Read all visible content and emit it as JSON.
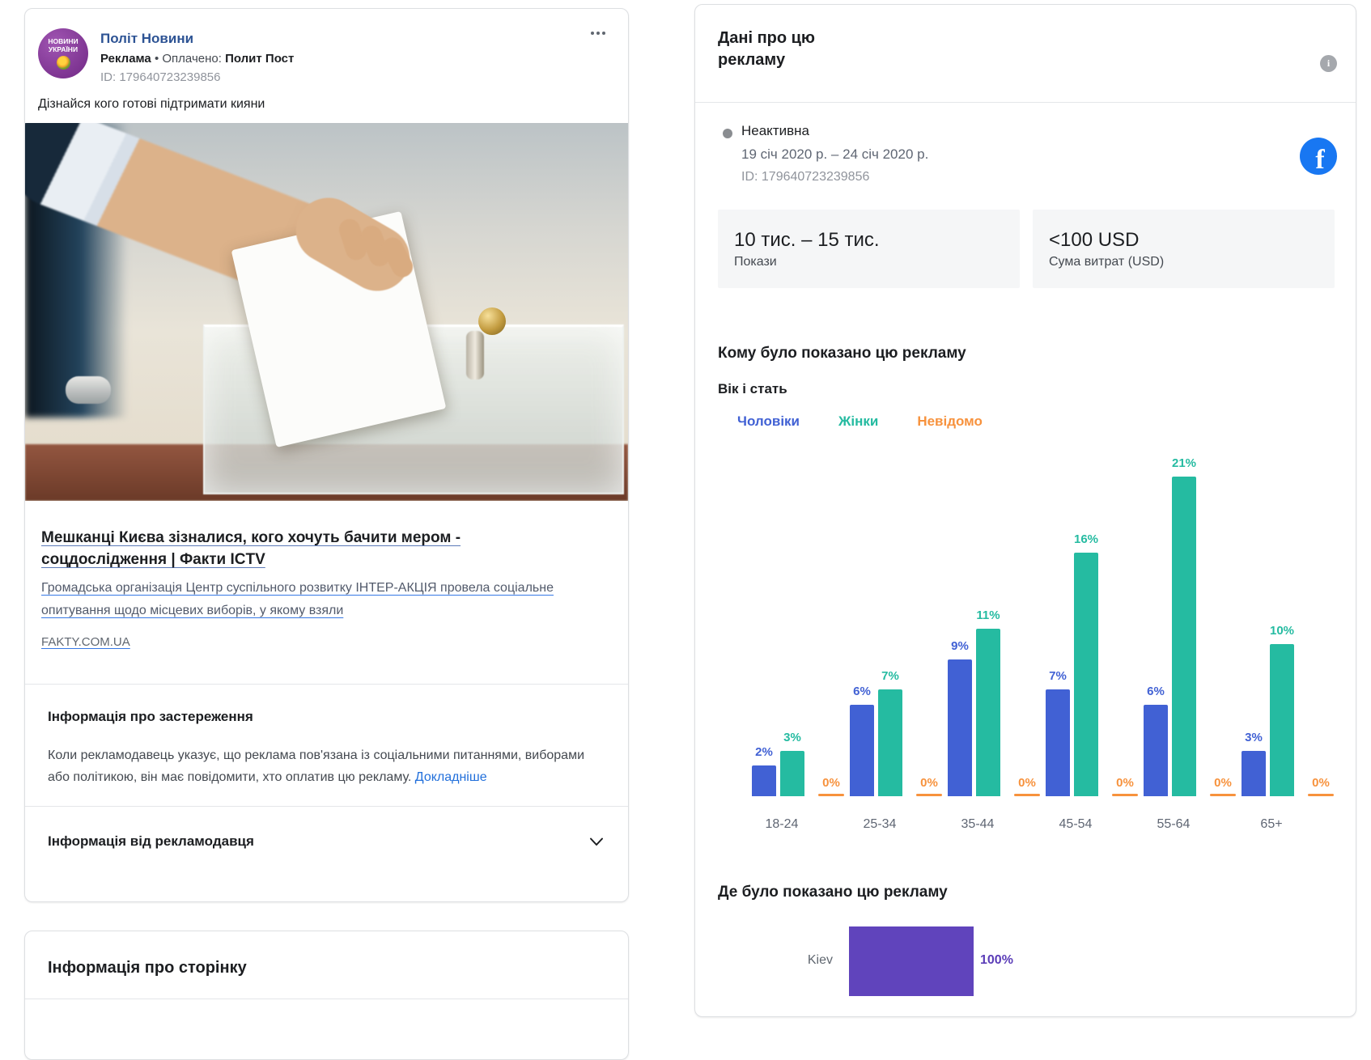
{
  "colors": {
    "men_blue": "#4161d4",
    "women_teal": "#25bba1",
    "unknown_orange": "#f7923d",
    "location_purple": "#6044bc",
    "link_blue": "#216fdb",
    "page_link_blue": "#2d5394",
    "facebook_blue": "#1877f2"
  },
  "left_card": {
    "avatar": {
      "line1": "НОВИНИ",
      "line2": "УКРАЇНИ"
    },
    "page_name": "Політ Новини",
    "meta": {
      "ad_label": "Реклама",
      "separator": "•",
      "paid_by_label": "Оплачено:",
      "paid_by": "Полит Пост"
    },
    "ad_id": "ID: 179640723239856",
    "post_text": "Дізнайся кого готові підтримати кияни",
    "link_preview": {
      "title": "Мешканці Києва зізналися, кого хочуть бачити мером - соцдослідження | Факти ICTV",
      "description": "Громадська організація Центр суспільного розвитку ІНТЕР-АКЦІЯ провела соціальне опитування щодо місцевих виборів, у якому взяли",
      "domain": "FAKTY.COM.UA"
    },
    "disclaimer": {
      "heading": "Інформація про застереження",
      "body": "Коли рекламодавець указує, що реклама пов'язана із соціальними питаннями, виборами або політикою, він має повідомити, хто оплатив цю рекламу.",
      "link": "Докладніше"
    },
    "advertiser_section": {
      "heading": "Інформація від рекламодавця"
    },
    "page_section": {
      "heading": "Інформація про сторінку"
    }
  },
  "right_card": {
    "title": "Дані про цю рекламу",
    "status": {
      "label": "Неактивна",
      "date_range": "19 січ 2020 р. – 24 січ 2020 р.",
      "ad_id": "ID: 179640723239856"
    },
    "metrics": [
      {
        "value": "10 тис. – 15 тис.",
        "label": "Покази"
      },
      {
        "value": "<100 USD",
        "label": "Сума витрат (USD)"
      }
    ],
    "audience_title": "Кому було показано цю рекламу",
    "age_gender_title": "Вік і стать",
    "legend": [
      {
        "label": "Чоловіки",
        "color": "#4161d4"
      },
      {
        "label": "Жінки",
        "color": "#25bba1"
      },
      {
        "label": "Невідомо",
        "color": "#f7923d"
      }
    ],
    "location_title": "Де було показано цю рекламу"
  },
  "chart_data": [
    {
      "type": "bar",
      "title": "Вік і стать",
      "categories": [
        "18-24",
        "25-34",
        "35-44",
        "45-54",
        "55-64",
        "65+"
      ],
      "series": [
        {
          "name": "Чоловіки",
          "color": "#4161d4",
          "values": [
            2,
            6,
            9,
            7,
            6,
            3
          ]
        },
        {
          "name": "Жінки",
          "color": "#25bba1",
          "values": [
            3,
            7,
            11,
            16,
            21,
            10
          ]
        },
        {
          "name": "Невідомо",
          "color": "#f7923d",
          "values": [
            0,
            0,
            0,
            0,
            0,
            0
          ]
        }
      ],
      "value_suffix": "%",
      "ylim": [
        0,
        21
      ],
      "grid": false,
      "legend_position": "top"
    },
    {
      "type": "bar",
      "orientation": "horizontal",
      "title": "Де було показано цю рекламу",
      "categories": [
        "Kiev"
      ],
      "values": [
        100
      ],
      "value_labels": [
        "100%"
      ],
      "value_suffix": "%",
      "color": "#6044bc"
    }
  ]
}
